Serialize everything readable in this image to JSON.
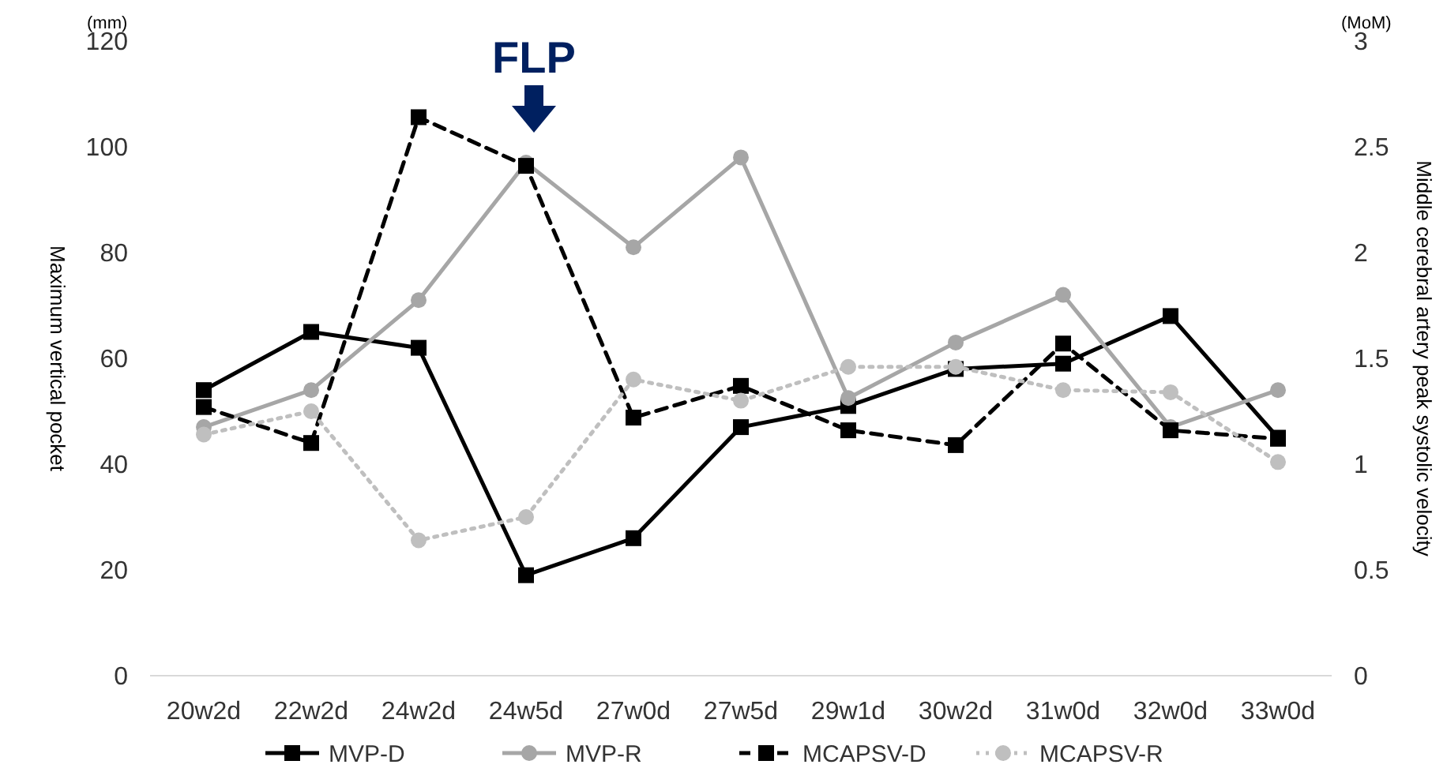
{
  "chart_data": {
    "type": "line",
    "xlabel": null,
    "ylabel": "Maximum vertical pocket",
    "y2label": "Middle cerebral artery peak systolic velocity",
    "categories": [
      "20w2d",
      "22w2d",
      "24w2d",
      "24w5d",
      "27w0d",
      "27w5d",
      "29w1d",
      "30w2d",
      "31w0d",
      "32w0d",
      "33w0d"
    ],
    "series": [
      {
        "name": "MVP-D",
        "color": "#000000",
        "marker": "square",
        "line_style": "solid",
        "values": [
          54,
          65,
          62,
          19,
          26,
          47,
          51,
          58,
          59,
          68,
          45
        ]
      },
      {
        "name": "MVP-R",
        "color": "#a6a6a6",
        "marker": "circle",
        "line_style": "solid",
        "values": [
          47,
          54,
          71,
          97,
          81,
          98,
          52.5,
          63,
          72,
          47,
          54
        ]
      },
      {
        "name": "MCAPSV-D",
        "color": "#000000",
        "marker": "square",
        "line_style": "dashed",
        "axis": "y2",
        "values": [
          1.27,
          1.1,
          2.64,
          2.41,
          1.22,
          1.37,
          1.16,
          1.09,
          1.57,
          1.16,
          1.12
        ]
      },
      {
        "name": "MCAPSV-R",
        "color": "#bfbfbf",
        "marker": "circle",
        "line_style": "dotted",
        "axis": "y2",
        "values": [
          1.14,
          1.25,
          0.64,
          0.75,
          1.4,
          1.3,
          1.46,
          1.46,
          1.35,
          1.34,
          1.01
        ]
      }
    ],
    "ylim": [
      0,
      120
    ],
    "yticks": [
      0,
      20,
      40,
      60,
      80,
      100,
      120
    ],
    "y2lim": [
      0,
      3
    ],
    "y2ticks": [
      0,
      {
        "value": 0.5,
        "label": "0.5"
      },
      1,
      {
        "value": 1.5,
        "label": "1.5"
      },
      2,
      {
        "value": 2.5,
        "label": "2.5"
      },
      3
    ],
    "annotations": [
      "(mm)",
      "(MoM)",
      "FLP"
    ],
    "legend": "bottom",
    "grid": false
  }
}
